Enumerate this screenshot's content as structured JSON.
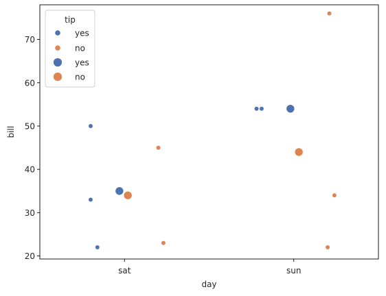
{
  "chart_data": {
    "type": "scatter",
    "title": "",
    "xlabel": "day",
    "ylabel": "bill",
    "categories": [
      "sat",
      "sun"
    ],
    "ylim": [
      19.3,
      78.0
    ],
    "yticks": [
      20,
      30,
      40,
      50,
      60,
      70
    ],
    "grid": false,
    "legend": {
      "title": "tip",
      "placement": "top-left",
      "entries": [
        {
          "label": "yes",
          "color": "#4c72b0",
          "marker": "small"
        },
        {
          "label": "no",
          "color": "#dd8452",
          "marker": "small"
        },
        {
          "label": "yes",
          "color": "#4c72b0",
          "marker": "large"
        },
        {
          "label": "no",
          "color": "#dd8452",
          "marker": "large"
        }
      ]
    },
    "series": [
      {
        "name": "yes",
        "color": "#4c72b0",
        "marker": "small",
        "points": [
          {
            "x": "sat",
            "offset": -0.2,
            "y": 50
          },
          {
            "x": "sat",
            "offset": -0.2,
            "y": 33
          },
          {
            "x": "sat",
            "offset": -0.16,
            "y": 22
          },
          {
            "x": "sun",
            "offset": -0.22,
            "y": 54
          },
          {
            "x": "sun",
            "offset": -0.19,
            "y": 54
          }
        ]
      },
      {
        "name": "no",
        "color": "#dd8452",
        "marker": "small",
        "points": [
          {
            "x": "sat",
            "offset": 0.2,
            "y": 45
          },
          {
            "x": "sat",
            "offset": 0.23,
            "y": 23
          },
          {
            "x": "sun",
            "offset": 0.21,
            "y": 76
          },
          {
            "x": "sun",
            "offset": 0.24,
            "y": 34
          },
          {
            "x": "sun",
            "offset": 0.2,
            "y": 22
          }
        ]
      },
      {
        "name": "yes",
        "color": "#4c72b0",
        "marker": "large",
        "points": [
          {
            "x": "sat",
            "offset": -0.03,
            "y": 35
          },
          {
            "x": "sun",
            "offset": -0.02,
            "y": 54
          }
        ]
      },
      {
        "name": "no",
        "color": "#dd8452",
        "marker": "large",
        "points": [
          {
            "x": "sat",
            "offset": 0.02,
            "y": 34
          },
          {
            "x": "sun",
            "offset": 0.03,
            "y": 44
          }
        ]
      }
    ]
  }
}
